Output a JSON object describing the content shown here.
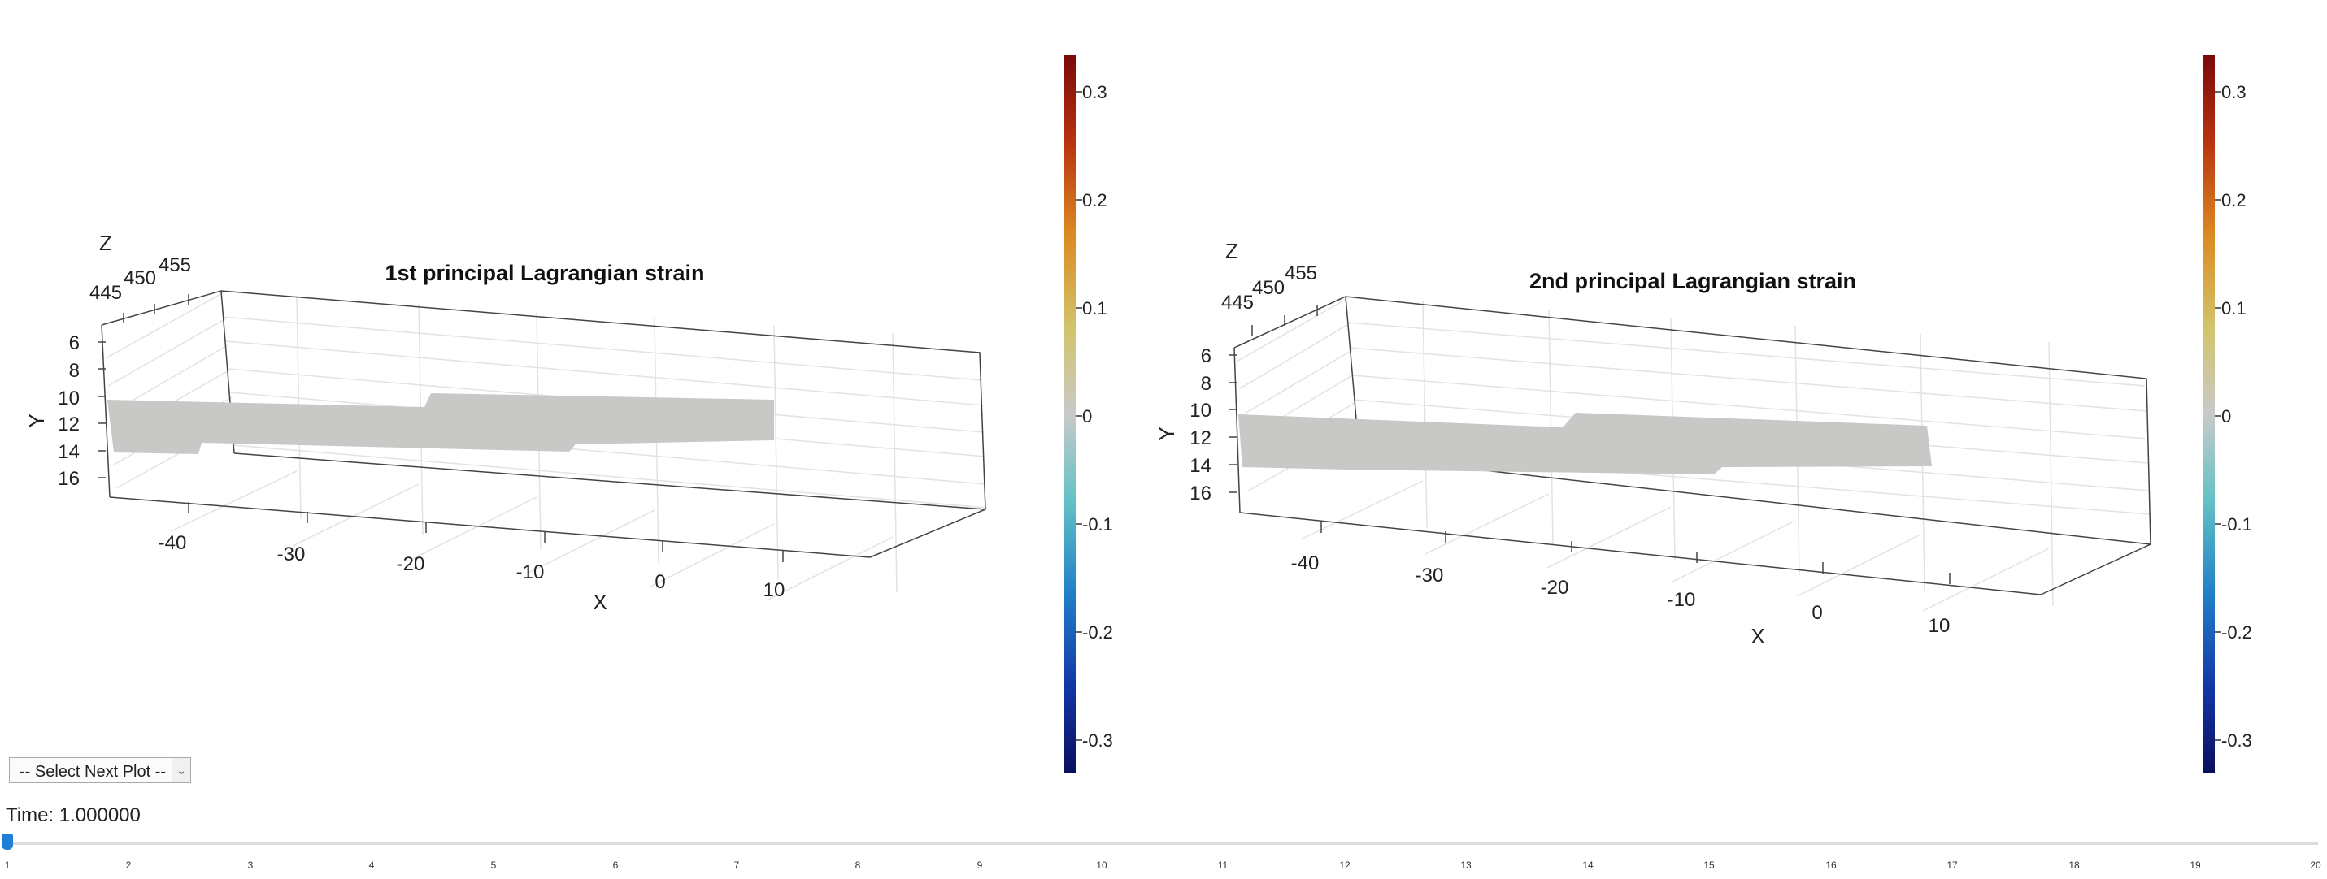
{
  "plots": [
    {
      "title": "1st principal Lagrangian strain",
      "xlabel": "X",
      "ylabel": "Y",
      "zlabel": "Z",
      "x_ticks": [
        "-40",
        "-30",
        "-20",
        "-10",
        "0",
        "10"
      ],
      "y_ticks": [
        "6",
        "8",
        "10",
        "12",
        "14",
        "16"
      ],
      "z_ticks": [
        "445",
        "450",
        "455"
      ],
      "colorbar_ticks": [
        "0.3",
        "0.2",
        "0.1",
        "0",
        "-0.1",
        "-0.2",
        "-0.3"
      ]
    },
    {
      "title": "2nd principal Lagrangian strain",
      "xlabel": "X",
      "ylabel": "Y",
      "zlabel": "Z",
      "x_ticks": [
        "-40",
        "-30",
        "-20",
        "-10",
        "0",
        "10"
      ],
      "y_ticks": [
        "6",
        "8",
        "10",
        "12",
        "14",
        "16"
      ],
      "z_ticks": [
        "445",
        "450",
        "455"
      ],
      "colorbar_ticks": [
        "0.3",
        "0.2",
        "0.1",
        "0",
        "-0.1",
        "-0.2",
        "-0.3"
      ]
    }
  ],
  "colorbar_range": [
    -0.33,
    0.33
  ],
  "colors": {
    "surface": "#c8c8c6",
    "slider_thumb": "#1f7ed6"
  },
  "controls": {
    "select_label": "-- Select Next Plot --",
    "select_arrow_icon": "chevron-down-icon",
    "time_label": "Time: 1.000000",
    "slider_min": 1,
    "slider_max": 20,
    "slider_value": 1,
    "slider_ticks": [
      "1",
      "2",
      "3",
      "4",
      "5",
      "6",
      "7",
      "8",
      "9",
      "10",
      "11",
      "12",
      "13",
      "14",
      "15",
      "16",
      "17",
      "18",
      "19",
      "20"
    ]
  }
}
